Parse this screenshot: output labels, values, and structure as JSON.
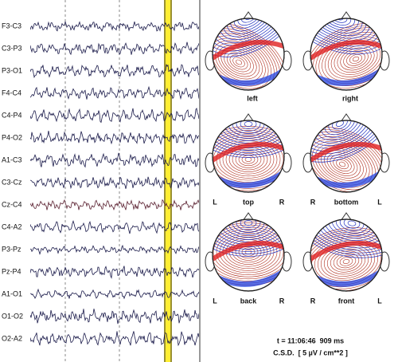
{
  "channels": [
    "F3-C3",
    "C3-P3",
    "P3-O1",
    "F4-C4",
    "C4-P4",
    "P4-O2",
    "A1-C3",
    "C3-Cz",
    "Cz-C4",
    "C4-A2",
    "P3-Pz",
    "Pz-P4",
    "A1-O1",
    "O1-O2",
    "O2-A2"
  ],
  "views": [
    {
      "name": "left"
    },
    {
      "name": "right"
    },
    {
      "name": "top",
      "left": "L",
      "right": "R"
    },
    {
      "name": "bottom",
      "left": "R",
      "right": "L"
    },
    {
      "name": "back",
      "left": "L",
      "right": "R"
    },
    {
      "name": "front",
      "left": "R",
      "right": "L"
    }
  ],
  "footer": {
    "time": "t = 11:06:46  909 ms",
    "unit": "C.S.D.  [ 5 µV / cm**2 ]"
  }
}
